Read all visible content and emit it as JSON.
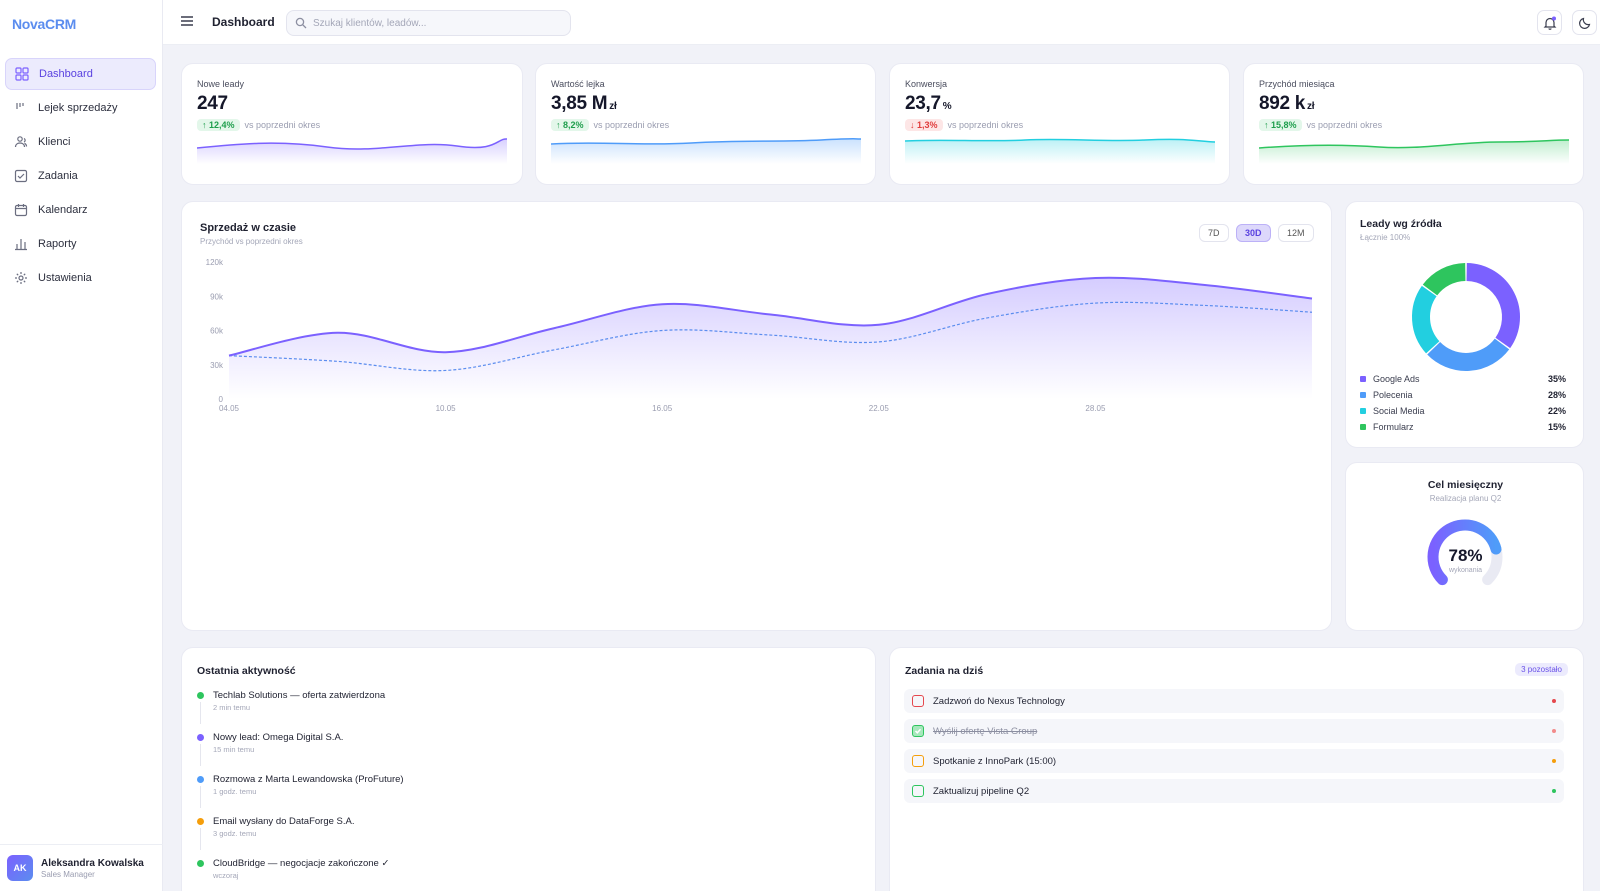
{
  "app": {
    "name": "NovaCRM"
  },
  "sidebar": {
    "items": [
      {
        "label": "Dashboard",
        "icon": "grid-icon"
      },
      {
        "label": "Lejek sprzedaży",
        "icon": "funnel-icon"
      },
      {
        "label": "Klienci",
        "icon": "users-icon"
      },
      {
        "label": "Zadania",
        "icon": "check-square-icon"
      },
      {
        "label": "Kalendarz",
        "icon": "calendar-icon"
      },
      {
        "label": "Raporty",
        "icon": "bar-chart-icon"
      },
      {
        "label": "Ustawienia",
        "icon": "gear-icon"
      }
    ],
    "user": {
      "initials": "AK",
      "name": "Aleksandra Kowalska",
      "role": "Sales Manager"
    }
  },
  "header": {
    "title": "Dashboard",
    "search_placeholder": "Szukaj klientów, leadów..."
  },
  "kpis": [
    {
      "label": "Nowe leady",
      "value": "247",
      "unit": "",
      "delta": "12,4%",
      "direction": "up",
      "delta_text": "vs poprzedni okres",
      "color": "#7b61ff"
    },
    {
      "label": "Wartość lejka",
      "value": "3,85 M",
      "unit": "zł",
      "delta": "8,2%",
      "direction": "up",
      "delta_text": "vs poprzedni okres",
      "color": "#4f9cf9"
    },
    {
      "label": "Konwersja",
      "value": "23,7",
      "unit": "%",
      "delta": "1,3%",
      "direction": "down",
      "delta_text": "vs poprzedni okres",
      "color": "#22cfe0"
    },
    {
      "label": "Przychód miesiąca",
      "value": "892 k",
      "unit": "zł",
      "delta": "15,8%",
      "direction": "up",
      "delta_text": "vs poprzedni okres",
      "color": "#2ec55e"
    }
  ],
  "sales": {
    "title": "Sprzedaż w czasie",
    "subtitle": "Przychód vs poprzedni okres",
    "ranges": [
      "7D",
      "30D",
      "12M"
    ],
    "active_range": "30D"
  },
  "chart_data": {
    "type": "area",
    "x": [
      "04.05",
      "07.05",
      "10.05",
      "13.05",
      "16.05",
      "19.05",
      "22.05",
      "25.05",
      "28.05",
      "31.05",
      "03.06"
    ],
    "categories_shown": [
      "04.05",
      "10.05",
      "16.05",
      "22.05",
      "28.05"
    ],
    "yticks": [
      "0",
      "30k",
      "60k",
      "90k",
      "120k"
    ],
    "ylim": [
      0,
      120000
    ],
    "series": [
      {
        "values": [
          38000,
          58000,
          41000,
          62000,
          83000,
          74000,
          65000,
          92000,
          106000,
          100000,
          88000
        ],
        "color": "#7b61ff"
      },
      {
        "values": [
          38000,
          33000,
          25000,
          43000,
          60000,
          56000,
          50000,
          71000,
          84000,
          82000,
          76000
        ],
        "color": "#5b8def"
      }
    ]
  },
  "sources": {
    "title": "Leady wg źródła",
    "subtitle": "Łącznie 100%",
    "items": [
      {
        "label": "Google Ads",
        "pct": "35%",
        "value": 35,
        "color": "#7b61ff"
      },
      {
        "label": "Polecenia",
        "pct": "28%",
        "value": 28,
        "color": "#4f9cf9"
      },
      {
        "label": "Social Media",
        "pct": "22%",
        "value": 22,
        "color": "#22cfe0"
      },
      {
        "label": "Formularz",
        "pct": "15%",
        "value": 15,
        "color": "#2ec55e"
      }
    ]
  },
  "goal": {
    "title": "Cel miesięczny",
    "subtitle": "Realizacja planu Q2",
    "value_label": "78%",
    "caption": "wykonania",
    "value": 78
  },
  "activity": {
    "title": "Ostatnia aktywność",
    "items": [
      {
        "text": "Techlab Solutions — oferta zatwierdzona",
        "time": "2 min temu",
        "color": "#2ec55e"
      },
      {
        "text": "Nowy lead: Omega Digital S.A.",
        "time": "15 min temu",
        "color": "#7b61ff"
      },
      {
        "text": "Rozmowa z Marta Lewandowska (ProFuture)",
        "time": "1 godz. temu",
        "color": "#4f9cf9"
      },
      {
        "text": "Email wysłany do DataForge S.A.",
        "time": "3 godz. temu",
        "color": "#f59e0b"
      },
      {
        "text": "CloudBridge — negocjacje zakończone ✓",
        "time": "wczoraj",
        "color": "#2ec55e"
      }
    ]
  },
  "tasks": {
    "title": "Zadania na dziś",
    "badge": "3 pozostało",
    "items": [
      {
        "text": "Zadzwoń do Nexus Technology",
        "done": false,
        "color": "#e5484d"
      },
      {
        "text": "Wyślij ofertę Vista Group",
        "done": true,
        "color": "#f28b8b"
      },
      {
        "text": "Spotkanie z InnoPark (15:00)",
        "done": false,
        "color": "#f59e0b"
      },
      {
        "text": "Zaktualizuj pipeline Q2",
        "done": false,
        "color": "#2ec55e"
      }
    ]
  }
}
